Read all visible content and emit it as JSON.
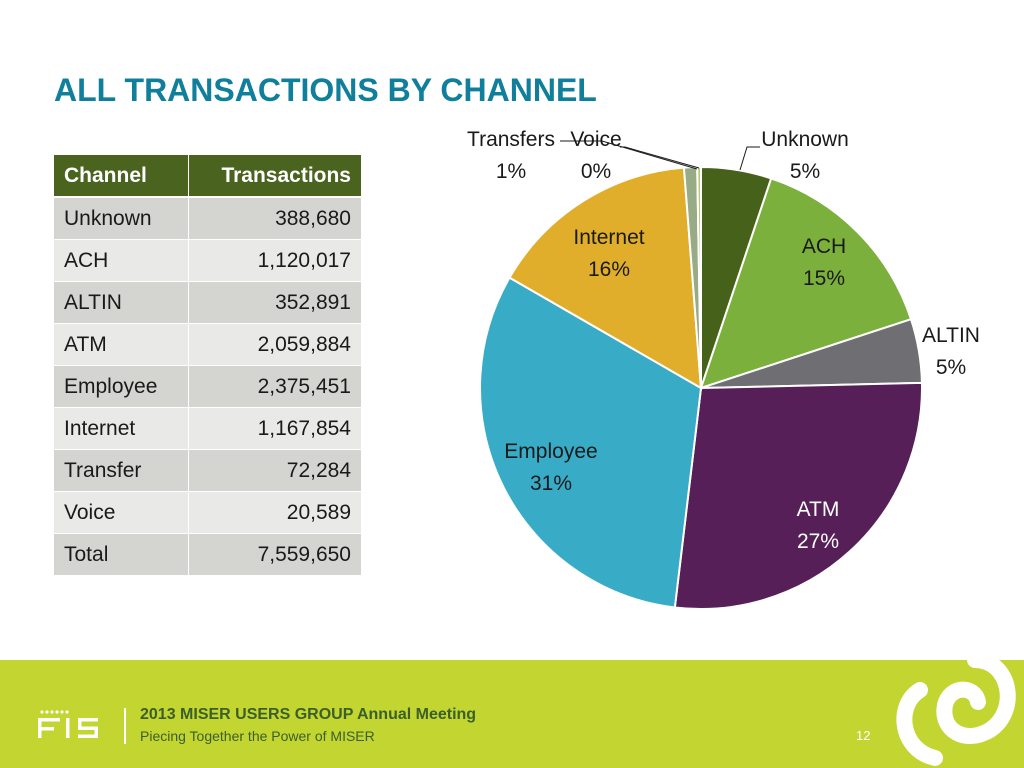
{
  "title": "ALL TRANSACTIONS BY CHANNEL",
  "table": {
    "headers": [
      "Channel",
      "Transactions"
    ],
    "rows": [
      [
        "Unknown",
        "388,680"
      ],
      [
        "ACH",
        "1,120,017"
      ],
      [
        "ALTIN",
        "352,891"
      ],
      [
        "ATM",
        "2,059,884"
      ],
      [
        "Employee",
        "2,375,451"
      ],
      [
        "Internet",
        "1,167,854"
      ],
      [
        "Transfer",
        "72,284"
      ],
      [
        "Voice",
        "20,589"
      ],
      [
        "Total",
        "7,559,650"
      ]
    ]
  },
  "chart_data": {
    "type": "pie",
    "slices": [
      {
        "label": "Unknown",
        "value": 388680,
        "pct_label": "5%",
        "color": "#466119"
      },
      {
        "label": "ACH",
        "value": 1120017,
        "pct_label": "15%",
        "color": "#7cb03c"
      },
      {
        "label": "ALTIN",
        "value": 352891,
        "pct_label": "5%",
        "color": "#6f6e73"
      },
      {
        "label": "ATM",
        "value": 2059884,
        "pct_label": "27%",
        "color": "#571f57"
      },
      {
        "label": "Employee",
        "value": 2375451,
        "pct_label": "31%",
        "color": "#38abc7"
      },
      {
        "label": "Internet",
        "value": 1167854,
        "pct_label": "16%",
        "color": "#e0ae2b"
      },
      {
        "label": "Transfers",
        "value": 72284,
        "pct_label": "1%",
        "color": "#98aa86"
      },
      {
        "label": "Voice",
        "value": 20589,
        "pct_label": "0%",
        "color": "#b9c970"
      }
    ]
  },
  "footer": {
    "logo_text": "FIS",
    "title": "2013 MISER USERS GROUP Annual Meeting",
    "subtitle": "Piecing Together the Power of MISER",
    "page_number": "12"
  },
  "colors": {
    "title": "#0f7f9c",
    "table_header": "#4a641f",
    "footer_bg": "#c2d530",
    "footer_text": "#3b5f2a"
  }
}
